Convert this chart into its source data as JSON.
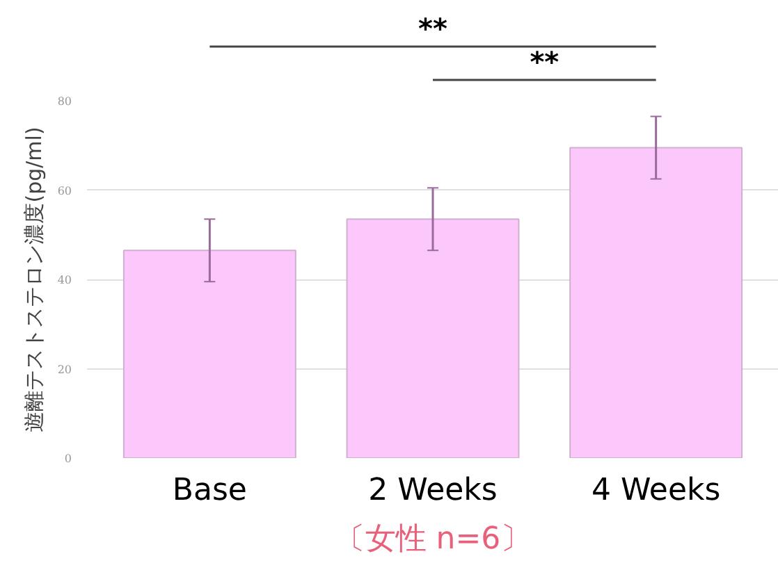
{
  "chart_data": {
    "type": "bar",
    "ylabel": "遊離テストステロン濃度(pg/ml)",
    "categories": [
      "Base",
      "2 Weeks",
      "4 Weeks"
    ],
    "values": [
      46.5,
      53.5,
      69.5
    ],
    "errors": [
      7,
      7,
      7
    ],
    "color": "#fcc8fc",
    "ylim": [
      0,
      80
    ],
    "yticks": [
      0,
      20,
      40,
      60,
      80
    ],
    "grid": "y",
    "annotations": [
      "**",
      "**",
      "〔女性 n=6〕"
    ]
  }
}
